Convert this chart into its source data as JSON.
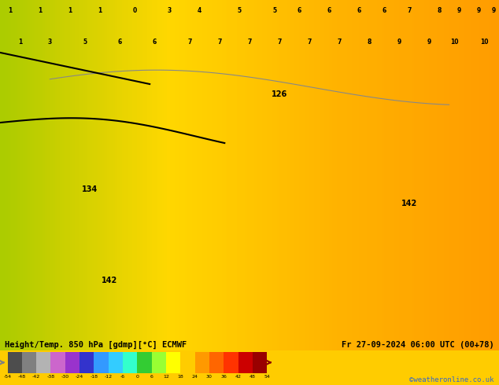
{
  "title_left": "Height/Temp. 850 hPa [gdmp][°C] ECMWF",
  "title_right": "Fr 27-09-2024 06:00 UTC (00+78)",
  "credit": "©weatheronline.co.uk",
  "colorbar_values": [
    -54,
    -48,
    -42,
    -38,
    -30,
    -24,
    -18,
    -12,
    -6,
    0,
    6,
    12,
    18,
    24,
    30,
    36,
    42,
    48,
    54
  ],
  "colorbar_tick_labels": [
    "-54",
    "-48",
    "-42",
    "-38",
    "-30",
    "-24",
    "-18",
    "-12",
    "-6",
    "0",
    "6",
    "12",
    "18",
    "24",
    "30",
    "36",
    "42",
    "48",
    "54"
  ],
  "colorbar_colors": [
    "#4d4d4d",
    "#808080",
    "#b3b3b3",
    "#cc66cc",
    "#9933cc",
    "#3333cc",
    "#3399ff",
    "#33ccff",
    "#33ffcc",
    "#33cc33",
    "#99ff33",
    "#ffff00",
    "#ffcc00",
    "#ff9900",
    "#ff6600",
    "#ff3300",
    "#cc0000",
    "#990000"
  ],
  "bg_color": "#ffcc00",
  "map_bg_top": "#ffdd44",
  "map_area_color": "#ffaa00",
  "border_color": "#999999",
  "contour_color_black": "#000000",
  "contour_color_gray": "#aaaaaa",
  "text_color_white": "#ffffff",
  "text_color_black": "#000000",
  "bottom_bar_color": "#ffcc00",
  "figsize": [
    6.34,
    4.9
  ],
  "dpi": 100
}
